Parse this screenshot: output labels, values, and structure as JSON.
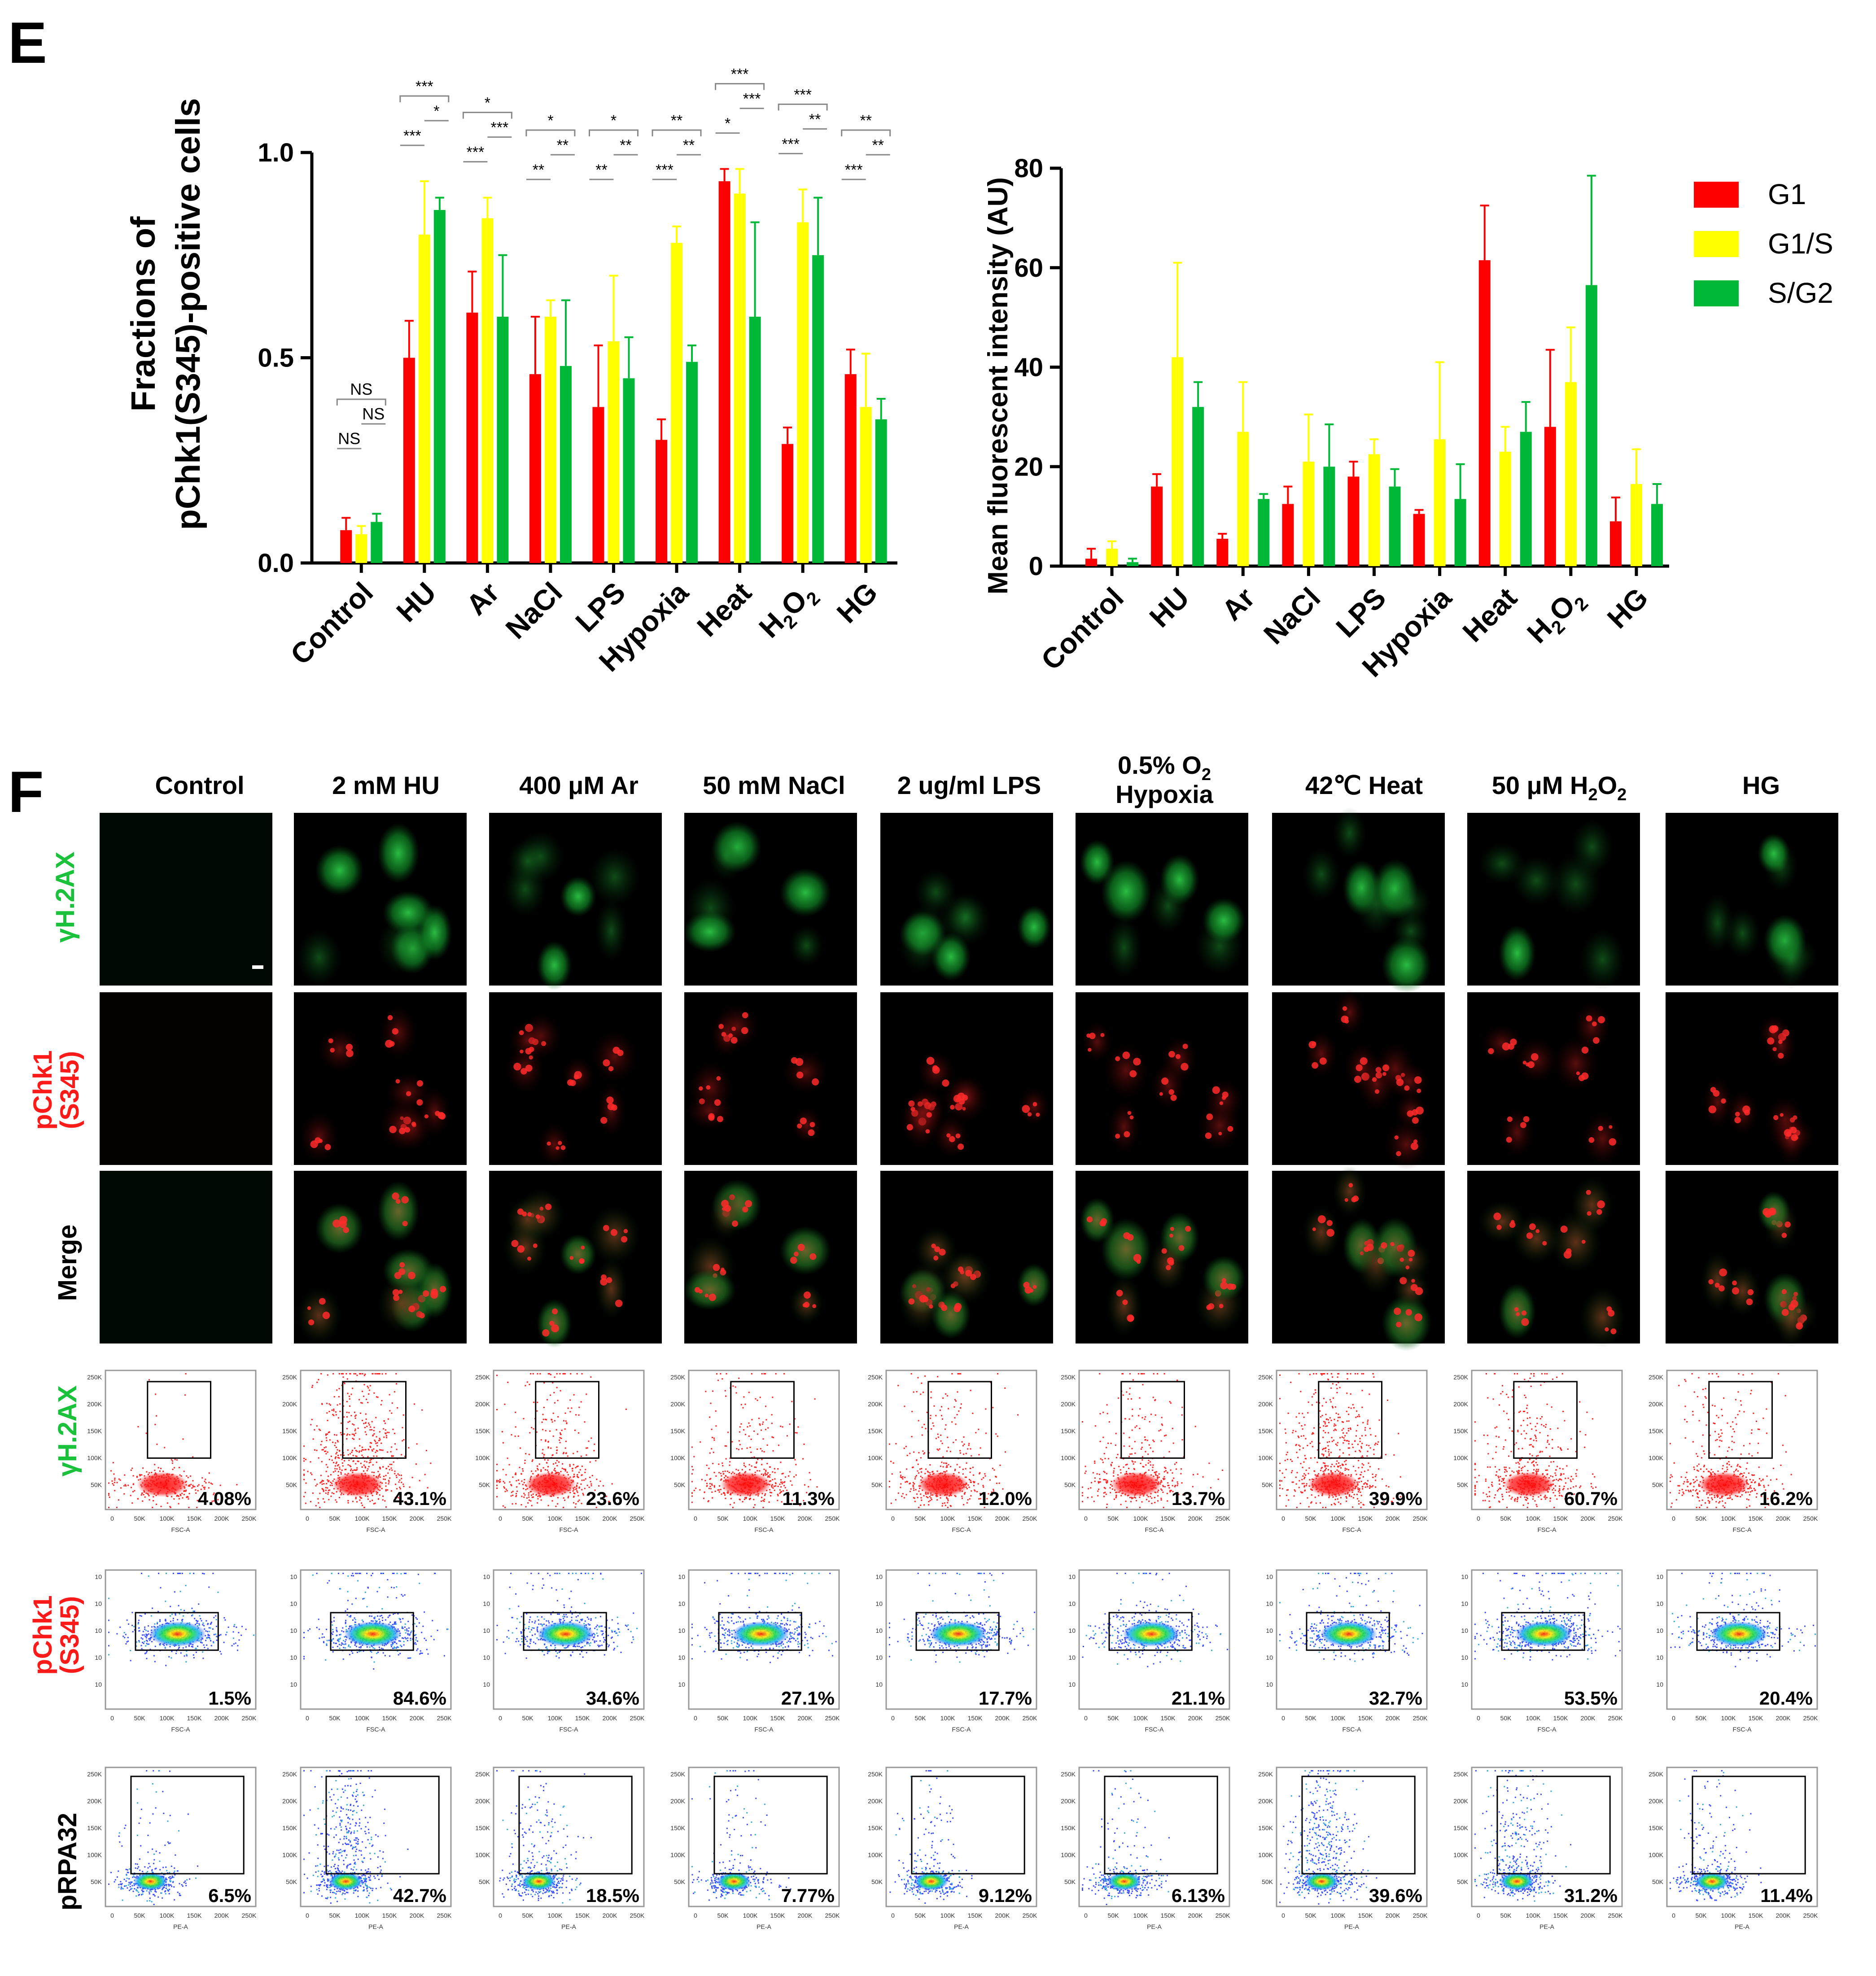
{
  "panels": {
    "e_label": "E",
    "f_label": "F"
  },
  "categories": [
    "Control",
    "HU",
    "Ar",
    "NaCl",
    "LPS",
    "Hypoxia",
    "Heat",
    "H2O2",
    "HG"
  ],
  "legend": [
    {
      "name": "G1",
      "color": "#ff0000"
    },
    {
      "name": "G1/S",
      "color": "#ffff00"
    },
    {
      "name": "S/G2",
      "color": "#00b837"
    }
  ],
  "chart_data": [
    {
      "type": "bar",
      "title": "",
      "ylabel_line1": "Fractions of",
      "ylabel_line2": "pChk1(S345)-positive cells",
      "xlabel": "",
      "ylim": [
        0,
        1.0
      ],
      "yticks": [
        "0.0",
        "0.5",
        "1.0"
      ],
      "categories": [
        "Control",
        "HU",
        "Ar",
        "NaCl",
        "LPS",
        "Hypoxia",
        "Heat",
        "H2O2",
        "HG"
      ],
      "series": [
        {
          "name": "G1",
          "values": [
            0.08,
            0.5,
            0.61,
            0.46,
            0.38,
            0.3,
            0.93,
            0.29,
            0.46
          ],
          "errors": [
            0.03,
            0.09,
            0.1,
            0.14,
            0.15,
            0.05,
            0.03,
            0.04,
            0.06
          ]
        },
        {
          "name": "G1/S",
          "values": [
            0.07,
            0.8,
            0.84,
            0.6,
            0.54,
            0.78,
            0.9,
            0.83,
            0.38
          ],
          "errors": [
            0.02,
            0.13,
            0.05,
            0.04,
            0.16,
            0.04,
            0.06,
            0.08,
            0.13
          ]
        },
        {
          "name": "S/G2",
          "values": [
            0.1,
            0.86,
            0.6,
            0.48,
            0.45,
            0.49,
            0.6,
            0.75,
            0.35
          ],
          "errors": [
            0.02,
            0.03,
            0.15,
            0.16,
            0.1,
            0.04,
            0.23,
            0.14,
            0.05
          ]
        }
      ],
      "significance": [
        {
          "cat": 0,
          "lines": [
            {
              "pair": "G1-S/G2",
              "label": "NS"
            },
            {
              "pair": "G1/S-S/G2",
              "label": "NS"
            },
            {
              "pair": "G1-G1/S",
              "label": "NS"
            }
          ]
        },
        {
          "cat": 1,
          "lines": [
            {
              "pair": "G1-S/G2",
              "label": "***"
            },
            {
              "pair": "G1/S-S/G2",
              "label": "*"
            },
            {
              "pair": "G1-G1/S",
              "label": "***"
            }
          ]
        },
        {
          "cat": 2,
          "lines": [
            {
              "pair": "G1-S/G2",
              "label": "*"
            },
            {
              "pair": "G1/S-S/G2",
              "label": "***"
            },
            {
              "pair": "G1-G1/S",
              "label": "***"
            }
          ]
        },
        {
          "cat": 3,
          "lines": [
            {
              "pair": "G1-S/G2",
              "label": "*"
            },
            {
              "pair": "G1/S-S/G2",
              "label": "**"
            },
            {
              "pair": "G1-G1/S",
              "label": "**"
            }
          ]
        },
        {
          "cat": 4,
          "lines": [
            {
              "pair": "G1-S/G2",
              "label": "*"
            },
            {
              "pair": "G1/S-S/G2",
              "label": "**"
            },
            {
              "pair": "G1-G1/S",
              "label": "**"
            }
          ]
        },
        {
          "cat": 5,
          "lines": [
            {
              "pair": "G1-S/G2",
              "label": "**"
            },
            {
              "pair": "G1/S-S/G2",
              "label": "**"
            },
            {
              "pair": "G1-G1/S",
              "label": "***"
            }
          ]
        },
        {
          "cat": 6,
          "lines": [
            {
              "pair": "G1-S/G2",
              "label": "***"
            },
            {
              "pair": "G1/S-S/G2",
              "label": "***"
            },
            {
              "pair": "G1-G1/S",
              "label": "*"
            }
          ]
        },
        {
          "cat": 7,
          "lines": [
            {
              "pair": "G1-S/G2",
              "label": "***"
            },
            {
              "pair": "G1/S-S/G2",
              "label": "**"
            },
            {
              "pair": "G1-G1/S",
              "label": "***"
            }
          ]
        },
        {
          "cat": 8,
          "lines": [
            {
              "pair": "G1-S/G2",
              "label": "**"
            },
            {
              "pair": "G1/S-S/G2",
              "label": "**"
            },
            {
              "pair": "G1-G1/S",
              "label": "***"
            }
          ]
        }
      ]
    },
    {
      "type": "bar",
      "title": "",
      "ylabel": "Mean fluorescent intensity (AU)",
      "xlabel": "",
      "ylim": [
        0,
        80
      ],
      "yticks": [
        "0",
        "20",
        "40",
        "60",
        "80"
      ],
      "categories": [
        "Control",
        "HU",
        "Ar",
        "NaCl",
        "LPS",
        "Hypoxia",
        "Heat",
        "H2O2",
        "HG"
      ],
      "series": [
        {
          "name": "G1",
          "values": [
            1.5,
            16,
            5.5,
            12.5,
            18,
            10.5,
            61.5,
            28,
            9
          ],
          "errors": [
            2,
            2.5,
            1,
            3.5,
            3,
            0.8,
            11,
            15.5,
            4.8
          ]
        },
        {
          "name": "G1/S",
          "values": [
            3.5,
            42,
            27,
            21,
            22.5,
            25.5,
            23,
            37,
            16.5
          ],
          "errors": [
            1.5,
            19,
            10,
            9.5,
            3,
            15.5,
            5,
            11,
            7
          ]
        },
        {
          "name": "S/G2",
          "values": [
            0.8,
            32,
            13.5,
            20,
            16,
            13.5,
            27,
            56.5,
            12.5
          ],
          "errors": [
            0.7,
            5,
            1,
            8.5,
            3.5,
            7,
            6,
            22,
            4
          ]
        }
      ]
    }
  ],
  "f_columns": [
    "Control",
    "2 mM HU",
    "400 μM Ar",
    "50 mM NaCl",
    "2 ug/ml LPS",
    "0.5% O",
    "42℃ Heat",
    "50 μM H",
    "HG"
  ],
  "f_col_hypoxia_line2": "Hypoxia",
  "f_o2_sub": "2",
  "f_h2o2_sub1": "2",
  "f_h2o2_O": "O",
  "f_h2o2_sub2": "2",
  "row_labels": {
    "gamma": "γH.2AX",
    "pchk1_l1": "pChk1",
    "pchk1_l2": "(S345)",
    "merge": "Merge",
    "prpa": "pRPA32"
  },
  "micro_cell_count": [
    0,
    4,
    4,
    3,
    5,
    4,
    5,
    3,
    4
  ],
  "flow": {
    "gamma": {
      "percents": [
        "4.08%",
        "43.1%",
        "23.6%",
        "11.3%",
        "12.0%",
        "13.7%",
        "39.9%",
        "60.7%",
        "16.2%"
      ],
      "xlabel": "FSC-A",
      "xticks": [
        "0",
        "50K",
        "100K",
        "150K",
        "200K",
        "250K"
      ],
      "yticks": [
        "50K",
        "100K",
        "150K",
        "200K",
        "250K"
      ],
      "density": [
        0.1,
        1.0,
        0.6,
        0.5,
        0.5,
        0.5,
        0.9,
        0.6,
        0.5
      ]
    },
    "pchk1": {
      "percents": [
        "1.5%",
        "84.6%",
        "34.6%",
        "27.1%",
        "17.7%",
        "21.1%",
        "32.7%",
        "53.5%",
        "20.4%"
      ],
      "xlabel": "FSC-A",
      "xticks": [
        "0",
        "50K",
        "100K",
        "150K",
        "200K",
        "250K"
      ],
      "yticks": [
        "10",
        "10",
        "10",
        "10",
        "10"
      ],
      "density": [
        0.5,
        0.8,
        0.6,
        0.6,
        0.5,
        0.5,
        0.6,
        0.8,
        0.5
      ]
    },
    "prpa": {
      "percents": [
        "6.5%",
        "42.7%",
        "18.5%",
        "7.77%",
        "9.12%",
        "6.13%",
        "39.6%",
        "31.2%",
        "11.4%"
      ],
      "xlabel": "PE-A",
      "xticks": [
        "0",
        "50K",
        "100K",
        "150K",
        "200K",
        "250K"
      ],
      "yticks": [
        "50K",
        "100K",
        "150K",
        "200K",
        "250K"
      ],
      "density": [
        0.3,
        0.9,
        0.5,
        0.3,
        0.3,
        0.3,
        0.9,
        0.7,
        0.4
      ]
    }
  },
  "scalebar_present": true
}
